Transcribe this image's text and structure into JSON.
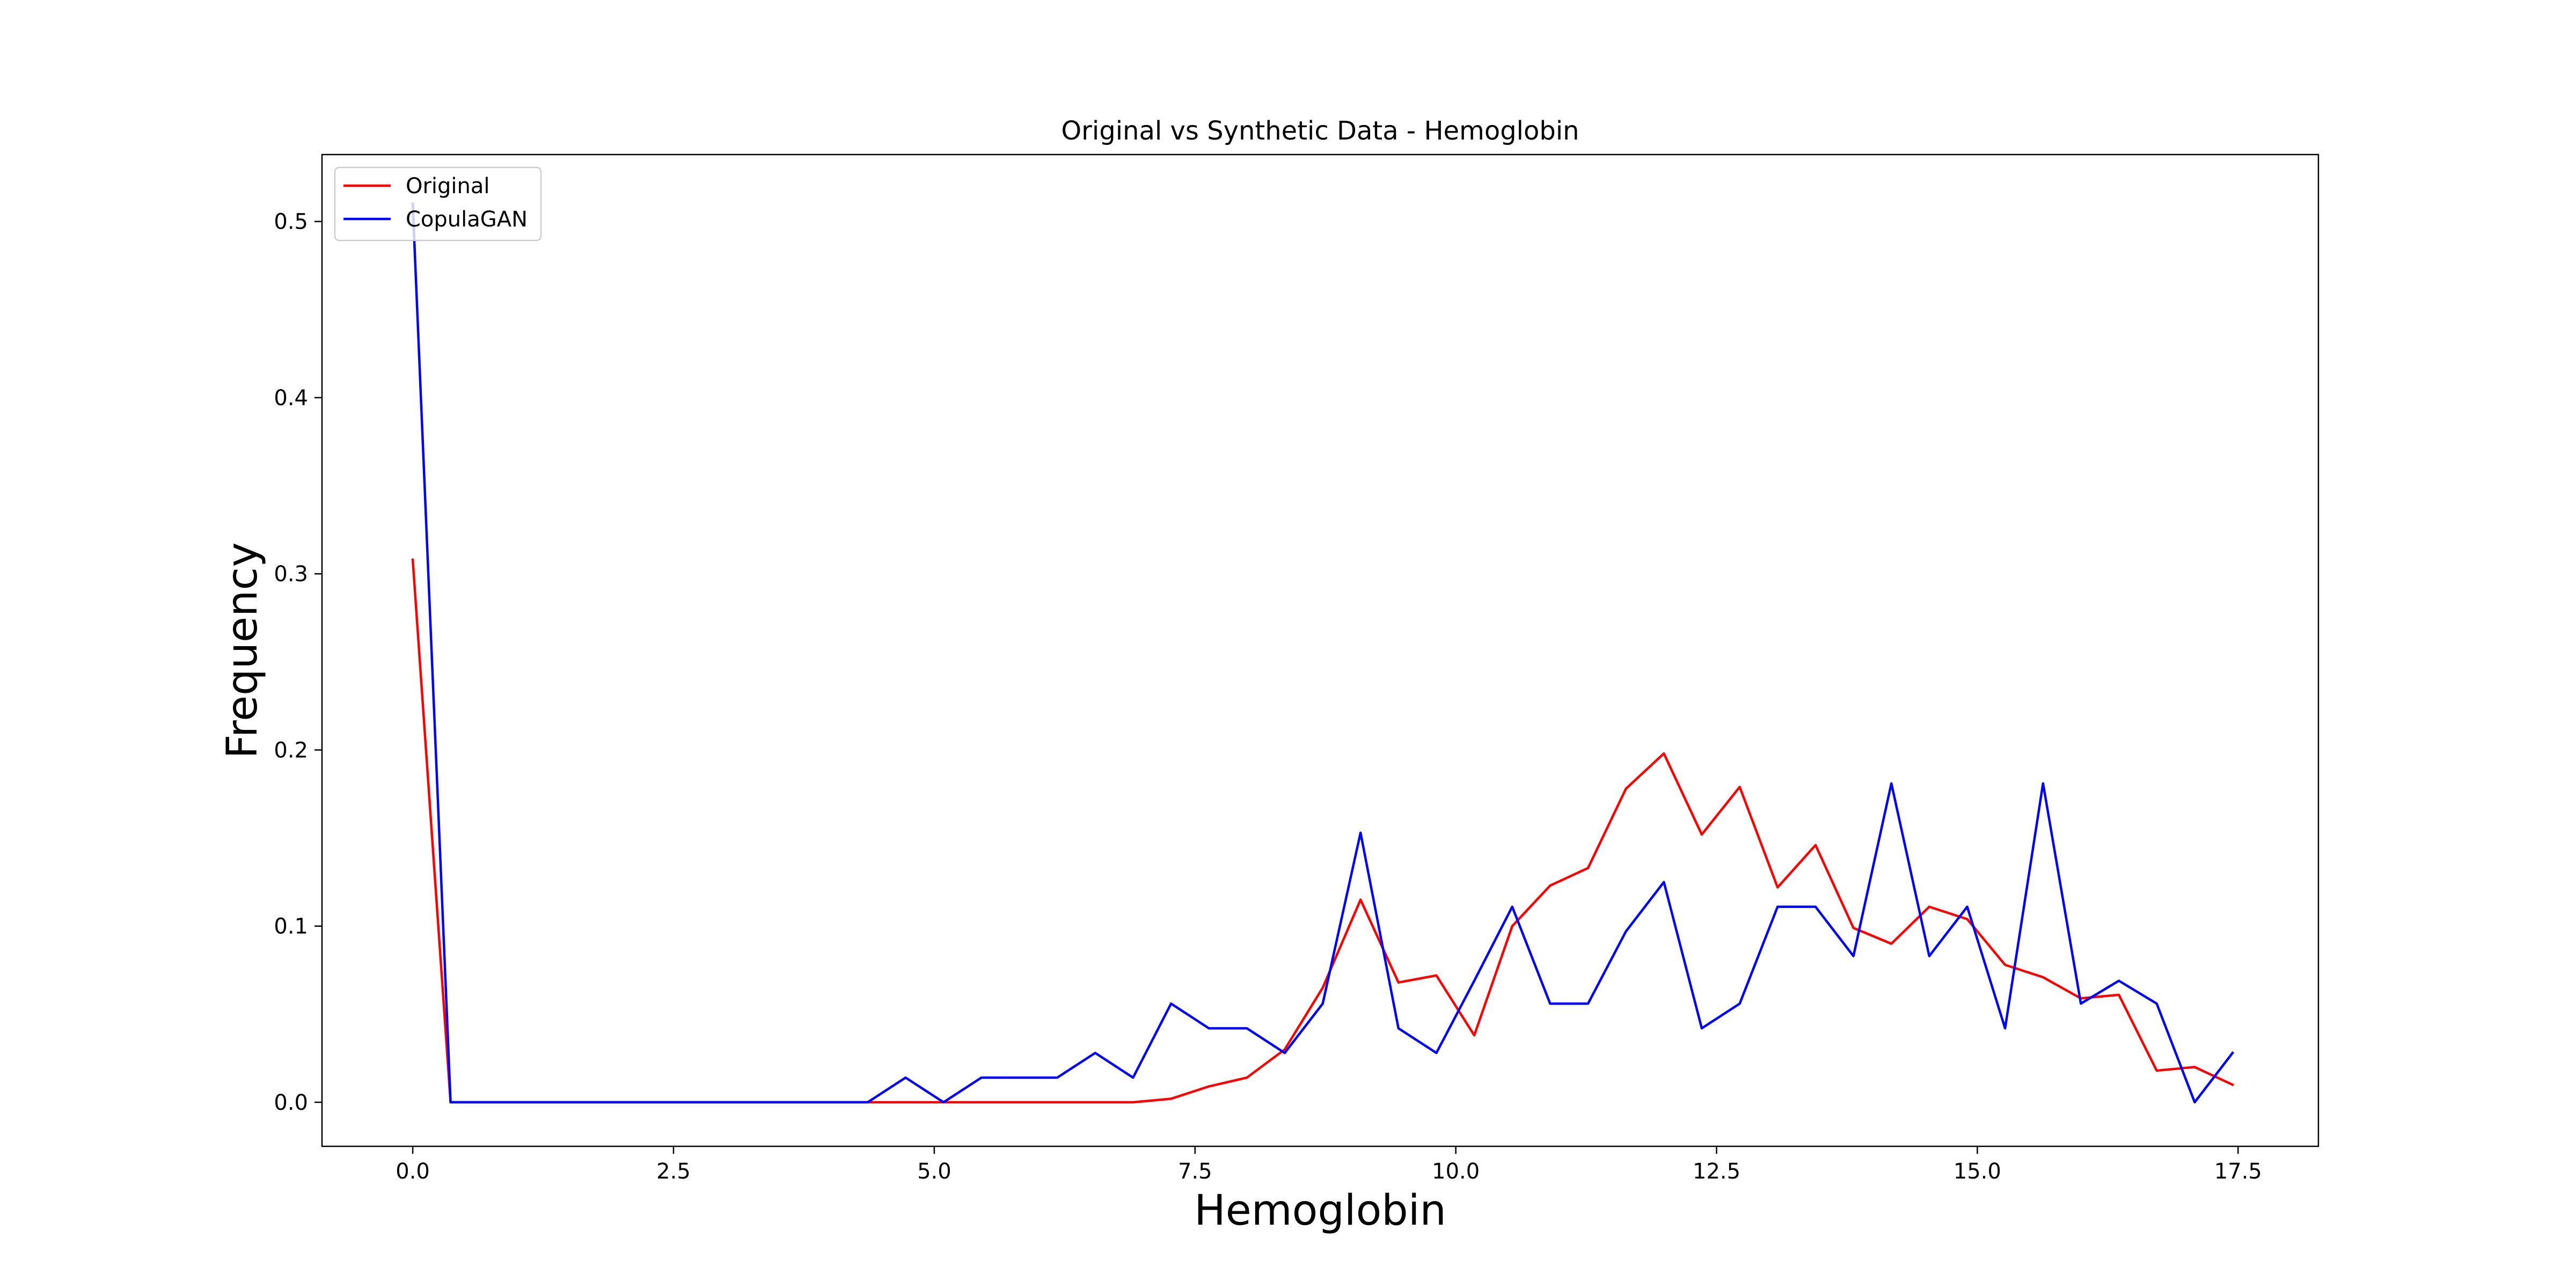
{
  "chart_data": {
    "type": "line",
    "title": "Original vs Synthetic Data - Hemoglobin",
    "xlabel": "Hemoglobin",
    "ylabel": "Frequency",
    "xlim": [
      -0.87,
      18.27
    ],
    "ylim": [
      -0.025,
      0.538
    ],
    "xticks": [
      0.0,
      2.5,
      5.0,
      7.5,
      10.0,
      12.5,
      15.0,
      17.5
    ],
    "xtick_labels": [
      "0.0",
      "2.5",
      "5.0",
      "7.5",
      "10.0",
      "12.5",
      "15.0",
      "17.5"
    ],
    "yticks": [
      0.0,
      0.1,
      0.2,
      0.3,
      0.4,
      0.5
    ],
    "ytick_labels": [
      "0.0",
      "0.1",
      "0.2",
      "0.3",
      "0.4",
      "0.5"
    ],
    "grid": false,
    "legend": "top-left",
    "x": [
      0.0,
      0.363,
      0.727,
      1.09,
      1.454,
      1.817,
      2.181,
      2.544,
      2.908,
      3.271,
      3.635,
      3.998,
      4.362,
      4.725,
      5.089,
      5.452,
      5.816,
      6.179,
      6.543,
      6.906,
      7.27,
      7.633,
      7.997,
      8.36,
      8.724,
      9.087,
      9.45,
      9.814,
      10.177,
      10.541,
      10.904,
      11.268,
      11.631,
      11.995,
      12.358,
      12.722,
      13.085,
      13.449,
      13.812,
      14.176,
      14.539,
      14.903,
      15.266,
      15.63,
      15.993,
      16.357,
      16.72,
      17.084,
      17.447
    ],
    "series": [
      {
        "name": "Original",
        "color": "#ff0000",
        "values": [
          0.308,
          0.0,
          0.0,
          0.0,
          0.0,
          0.0,
          0.0,
          0.0,
          0.0,
          0.0,
          0.0,
          0.0,
          0.0,
          0.0,
          0.0,
          0.0,
          0.0,
          0.0,
          0.0,
          0.0,
          0.002,
          0.009,
          0.014,
          0.03,
          0.065,
          0.115,
          0.068,
          0.072,
          0.038,
          0.1,
          0.123,
          0.133,
          0.178,
          0.198,
          0.152,
          0.179,
          0.122,
          0.146,
          0.099,
          0.09,
          0.111,
          0.104,
          0.078,
          0.071,
          0.059,
          0.061,
          0.018,
          0.02,
          0.01
        ]
      },
      {
        "name": "CopulaGAN",
        "color": "#0000ff",
        "values": [
          0.51,
          0.0,
          0.0,
          0.0,
          0.0,
          0.0,
          0.0,
          0.0,
          0.0,
          0.0,
          0.0,
          0.0,
          0.0,
          0.014,
          0.0,
          0.014,
          0.014,
          0.014,
          0.028,
          0.014,
          0.056,
          0.042,
          0.042,
          0.028,
          0.056,
          0.153,
          0.042,
          0.028,
          0.069,
          0.111,
          0.056,
          0.056,
          0.097,
          0.125,
          0.042,
          0.056,
          0.111,
          0.111,
          0.083,
          0.181,
          0.083,
          0.111,
          0.042,
          0.181,
          0.056,
          0.069,
          0.056,
          0.0,
          0.028
        ]
      }
    ]
  }
}
